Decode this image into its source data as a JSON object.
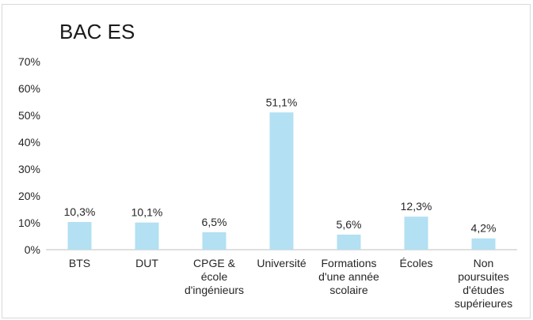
{
  "chart_data": {
    "type": "bar",
    "title": "BAC ES",
    "xlabel": "",
    "ylabel": "",
    "ylim": [
      0,
      70
    ],
    "ytick_values": [
      0,
      10,
      20,
      30,
      40,
      50,
      60,
      70
    ],
    "ytick_labels": [
      "0%",
      "10%",
      "20%",
      "30%",
      "40%",
      "50%",
      "60%",
      "70%"
    ],
    "categories": [
      "BTS",
      "DUT",
      "CPGE & école d'ingénieurs",
      "Université",
      "Formations d'une année scolaire",
      "Écoles",
      "Non poursuites d'études supérieures"
    ],
    "category_lines": [
      [
        "BTS"
      ],
      [
        "DUT"
      ],
      [
        "CPGE &",
        "école",
        "d'ingénieurs"
      ],
      [
        "Université"
      ],
      [
        "Formations",
        "d'une année",
        "scolaire"
      ],
      [
        "Écoles"
      ],
      [
        "Non",
        "poursuites",
        "d'études",
        "supérieures"
      ]
    ],
    "values": [
      10.3,
      10.1,
      6.5,
      51.1,
      5.6,
      12.3,
      4.2
    ],
    "value_labels": [
      "10,3%",
      "10,1%",
      "6,5%",
      "51,1%",
      "5,6%",
      "12,3%",
      "4,2%"
    ],
    "grid": false,
    "legend": "none",
    "bar_color": "#b3e0f2",
    "axis_color": "#bfbfbf"
  }
}
